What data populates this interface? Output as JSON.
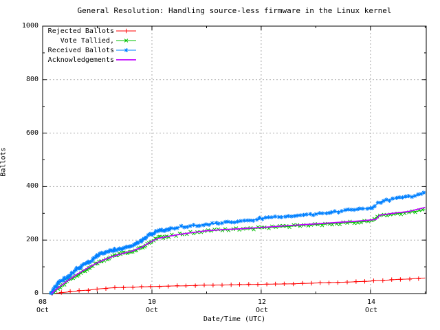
{
  "chart_data": {
    "type": "line",
    "title": "General Resolution: Handling source-less firmware in the Linux kernel",
    "xlabel": "Date/Time (UTC)",
    "ylabel": "Ballots",
    "legend_position": "top-left",
    "grid": {
      "shown": true,
      "color": "#a8a8a8",
      "style": "dashed"
    },
    "x_axis": {
      "range": [
        8,
        15.02
      ],
      "ticks": [
        {
          "day": "08",
          "month": "Oct",
          "value": 8
        },
        {
          "day": "10",
          "month": "Oct",
          "value": 10
        },
        {
          "day": "12",
          "month": "Oct",
          "value": 12
        },
        {
          "day": "14",
          "month": "Oct",
          "value": 14
        }
      ],
      "minor_ticks": [
        9,
        11,
        13,
        15
      ]
    },
    "y_axis": {
      "range": [
        0,
        1000
      ],
      "ticks": [
        "0",
        "200",
        "400",
        "600",
        "800",
        "1000"
      ],
      "tick_values": [
        0,
        200,
        400,
        600,
        800,
        1000
      ],
      "minor_ticks": [
        100,
        300,
        500,
        700,
        900
      ]
    },
    "series": [
      {
        "name": "Rejected Ballots",
        "color": "#ff0000",
        "marker": "plus",
        "points": [
          [
            8.18,
            0
          ],
          [
            8.28,
            2
          ],
          [
            8.42,
            5
          ],
          [
            8.55,
            8
          ],
          [
            8.7,
            11
          ],
          [
            8.85,
            13
          ],
          [
            9.0,
            17
          ],
          [
            9.12,
            19
          ],
          [
            9.25,
            21
          ],
          [
            9.45,
            23
          ],
          [
            9.62,
            24
          ],
          [
            9.8,
            25
          ],
          [
            10.0,
            26
          ],
          [
            10.3,
            28
          ],
          [
            10.6,
            29
          ],
          [
            10.9,
            31
          ],
          [
            11.2,
            32
          ],
          [
            11.5,
            33
          ],
          [
            11.8,
            34
          ],
          [
            12.1,
            35
          ],
          [
            12.45,
            36
          ],
          [
            12.8,
            38
          ],
          [
            13.1,
            40
          ],
          [
            13.4,
            42
          ],
          [
            13.6,
            43
          ],
          [
            13.8,
            45
          ],
          [
            13.95,
            46
          ],
          [
            14.1,
            48
          ],
          [
            14.22,
            49
          ],
          [
            14.35,
            51
          ],
          [
            14.5,
            53
          ],
          [
            14.65,
            54
          ],
          [
            14.8,
            56
          ],
          [
            15.0,
            58
          ]
        ]
      },
      {
        "name": "Vote Tallied,",
        "color": "#00c000",
        "marker": "cross",
        "points": [
          [
            8.16,
            0
          ],
          [
            8.22,
            10
          ],
          [
            8.3,
            22
          ],
          [
            8.4,
            38
          ],
          [
            8.5,
            52
          ],
          [
            8.6,
            65
          ],
          [
            8.7,
            78
          ],
          [
            8.8,
            90
          ],
          [
            8.9,
            102
          ],
          [
            9.0,
            114
          ],
          [
            9.1,
            125
          ],
          [
            9.2,
            133
          ],
          [
            9.32,
            141
          ],
          [
            9.45,
            149
          ],
          [
            9.6,
            157
          ],
          [
            9.72,
            164
          ],
          [
            9.82,
            172
          ],
          [
            9.92,
            186
          ],
          [
            10.02,
            200
          ],
          [
            10.12,
            208
          ],
          [
            10.28,
            214
          ],
          [
            10.45,
            220
          ],
          [
            10.65,
            226
          ],
          [
            10.85,
            231
          ],
          [
            11.05,
            235
          ],
          [
            11.3,
            238
          ],
          [
            11.55,
            241
          ],
          [
            11.8,
            243
          ],
          [
            12.0,
            245
          ],
          [
            12.25,
            248
          ],
          [
            12.5,
            251
          ],
          [
            12.75,
            255
          ],
          [
            13.0,
            258
          ],
          [
            13.25,
            261
          ],
          [
            13.5,
            264
          ],
          [
            13.75,
            267
          ],
          [
            13.95,
            270
          ],
          [
            14.07,
            272
          ],
          [
            14.13,
            290
          ],
          [
            14.25,
            294
          ],
          [
            14.45,
            298
          ],
          [
            14.65,
            303
          ],
          [
            14.85,
            308
          ],
          [
            15.0,
            314
          ]
        ]
      },
      {
        "name": "Received Ballots",
        "color": "#0080ff",
        "marker": "star",
        "points": [
          [
            8.15,
            0
          ],
          [
            8.2,
            18
          ],
          [
            8.27,
            35
          ],
          [
            8.35,
            48
          ],
          [
            8.44,
            60
          ],
          [
            8.53,
            75
          ],
          [
            8.62,
            90
          ],
          [
            8.72,
            104
          ],
          [
            8.82,
            115
          ],
          [
            8.9,
            124
          ],
          [
            9.0,
            140
          ],
          [
            9.08,
            150
          ],
          [
            9.18,
            157
          ],
          [
            9.3,
            163
          ],
          [
            9.42,
            168
          ],
          [
            9.55,
            173
          ],
          [
            9.65,
            179
          ],
          [
            9.75,
            190
          ],
          [
            9.85,
            204
          ],
          [
            9.95,
            218
          ],
          [
            10.05,
            229
          ],
          [
            10.18,
            237
          ],
          [
            10.35,
            244
          ],
          [
            10.55,
            250
          ],
          [
            10.75,
            254
          ],
          [
            10.95,
            258
          ],
          [
            11.2,
            262
          ],
          [
            11.45,
            267
          ],
          [
            11.7,
            272
          ],
          [
            11.9,
            277
          ],
          [
            12.1,
            283
          ],
          [
            12.35,
            287
          ],
          [
            12.6,
            291
          ],
          [
            12.85,
            295
          ],
          [
            13.1,
            300
          ],
          [
            13.35,
            306
          ],
          [
            13.6,
            311
          ],
          [
            13.8,
            315
          ],
          [
            13.95,
            318
          ],
          [
            14.05,
            323
          ],
          [
            14.12,
            336
          ],
          [
            14.2,
            345
          ],
          [
            14.3,
            350
          ],
          [
            14.45,
            354
          ],
          [
            14.6,
            358
          ],
          [
            14.75,
            362
          ],
          [
            14.9,
            369
          ],
          [
            15.0,
            376
          ]
        ]
      },
      {
        "name": "Acknowledgements",
        "color": "#c000ff",
        "marker": "none",
        "points": [
          [
            8.16,
            0
          ],
          [
            8.3,
            24
          ],
          [
            8.45,
            47
          ],
          [
            8.6,
            68
          ],
          [
            8.75,
            87
          ],
          [
            8.9,
            104
          ],
          [
            9.05,
            120
          ],
          [
            9.2,
            133
          ],
          [
            9.35,
            143
          ],
          [
            9.5,
            152
          ],
          [
            9.65,
            160
          ],
          [
            9.8,
            172
          ],
          [
            9.95,
            190
          ],
          [
            10.1,
            206
          ],
          [
            10.3,
            214
          ],
          [
            10.5,
            221
          ],
          [
            10.7,
            227
          ],
          [
            11.0,
            235
          ],
          [
            11.3,
            239
          ],
          [
            11.6,
            242
          ],
          [
            11.9,
            246
          ],
          [
            12.2,
            250
          ],
          [
            12.5,
            254
          ],
          [
            12.8,
            258
          ],
          [
            13.1,
            262
          ],
          [
            13.4,
            266
          ],
          [
            13.7,
            270
          ],
          [
            13.95,
            274
          ],
          [
            14.1,
            277
          ],
          [
            14.17,
            293
          ],
          [
            14.4,
            300
          ],
          [
            14.7,
            307
          ],
          [
            15.0,
            322
          ]
        ]
      }
    ]
  }
}
